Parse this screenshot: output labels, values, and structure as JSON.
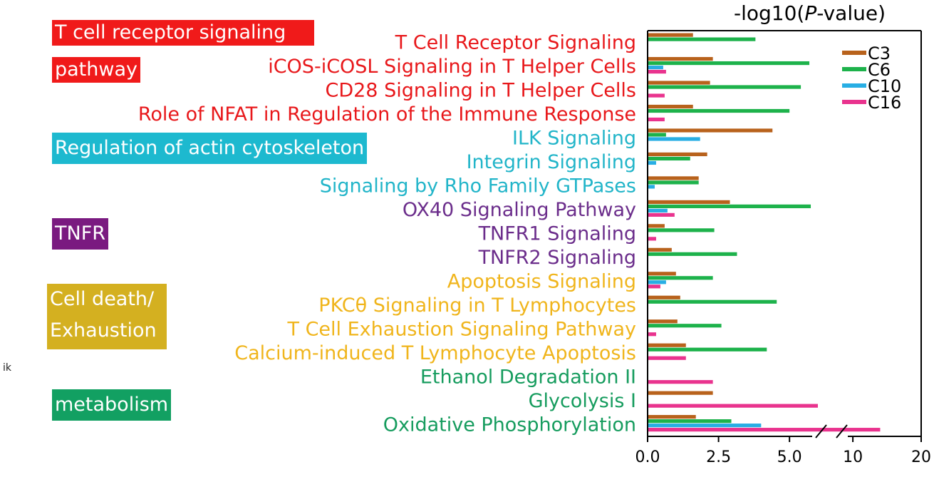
{
  "chart_data": {
    "type": "bar",
    "orientation": "horizontal",
    "title": "",
    "xlabel": "-log10(P-value)",
    "xlabel_parts": [
      "-log10(",
      "P",
      "-value)"
    ],
    "x_axis_broken": true,
    "xlim_segments": [
      [
        0,
        6.0
      ],
      [
        7.8,
        20
      ]
    ],
    "x_ticks": [
      "0.0",
      "2.5",
      "5.0",
      "10",
      "20"
    ],
    "x_tick_values": [
      0,
      2.5,
      5.0,
      10,
      20
    ],
    "legend": {
      "position": "top-right",
      "entries": [
        "C3",
        "C6",
        "C10",
        "C16"
      ]
    },
    "series_colors": {
      "C3": "#b8621c",
      "C6": "#1db24b",
      "C10": "#28aee4",
      "C16": "#e9338e"
    },
    "categories": [
      "T Cell Receptor Signaling",
      "iCOS-iCOSL Signaling in T Helper Cells",
      "CD28 Signaling in T Helper Cells",
      "Role of NFAT in Regulation of the Immune Response",
      "ILK Signaling",
      "Integrin Signaling",
      "Signaling by Rho Family GTPases",
      "OX40 Signaling Pathway",
      "TNFR1 Signaling",
      "TNFR2 Signaling",
      "Apoptosis Signaling",
      "PKCθ Signaling in T Lymphocytes",
      "T Cell Exhaustion Signaling Pathway",
      "Calcium-induced T Lymphocyte Apoptosis",
      "Ethanol Degradation II",
      "Glycolysis I",
      "Oxidative Phosphorylation"
    ],
    "category_colors": [
      "#e8181b",
      "#e8181b",
      "#e8181b",
      "#e8181b",
      "#22b5c9",
      "#22b5c9",
      "#22b5c9",
      "#6b2d8b",
      "#6b2d8b",
      "#6b2d8b",
      "#f0b51c",
      "#f0b51c",
      "#f0b51c",
      "#f0b51c",
      "#169c5e",
      "#169c5e",
      "#169c5e"
    ],
    "series": [
      {
        "name": "C3",
        "values": [
          1.6,
          2.3,
          2.2,
          1.6,
          4.4,
          2.1,
          1.8,
          2.9,
          0.6,
          0.85,
          1.0,
          1.15,
          1.05,
          1.35,
          null,
          2.3,
          1.7
        ]
      },
      {
        "name": "C6",
        "values": [
          3.8,
          5.7,
          5.4,
          5.0,
          0.65,
          1.5,
          1.8,
          5.75,
          2.35,
          3.15,
          2.3,
          4.55,
          2.6,
          4.2,
          null,
          null,
          2.95
        ]
      },
      {
        "name": "C10",
        "values": [
          null,
          0.55,
          null,
          null,
          1.85,
          0.3,
          0.25,
          0.7,
          null,
          null,
          0.65,
          null,
          null,
          null,
          null,
          null,
          4.0
        ]
      },
      {
        "name": "C16",
        "values": [
          null,
          0.65,
          0.6,
          0.6,
          null,
          null,
          null,
          0.95,
          0.3,
          null,
          0.45,
          null,
          0.3,
          1.35,
          2.3,
          6.2,
          14
        ]
      }
    ]
  },
  "category_groups": [
    {
      "label_lines": [
        "T cell receptor signaling",
        "pathway"
      ],
      "color": "#f01a1a"
    },
    {
      "label_lines": [
        "Regulation of actin cytoskeleton"
      ],
      "color": "#1db9cf"
    },
    {
      "label_lines": [
        "TNFR"
      ],
      "color": "#7a1a80"
    },
    {
      "label_lines": [
        "Cell death/",
        "Exhaustion"
      ],
      "color": "#d4b020"
    },
    {
      "label_lines": [
        "metabolism"
      ],
      "color": "#12a062"
    }
  ],
  "stray_text": "ik"
}
